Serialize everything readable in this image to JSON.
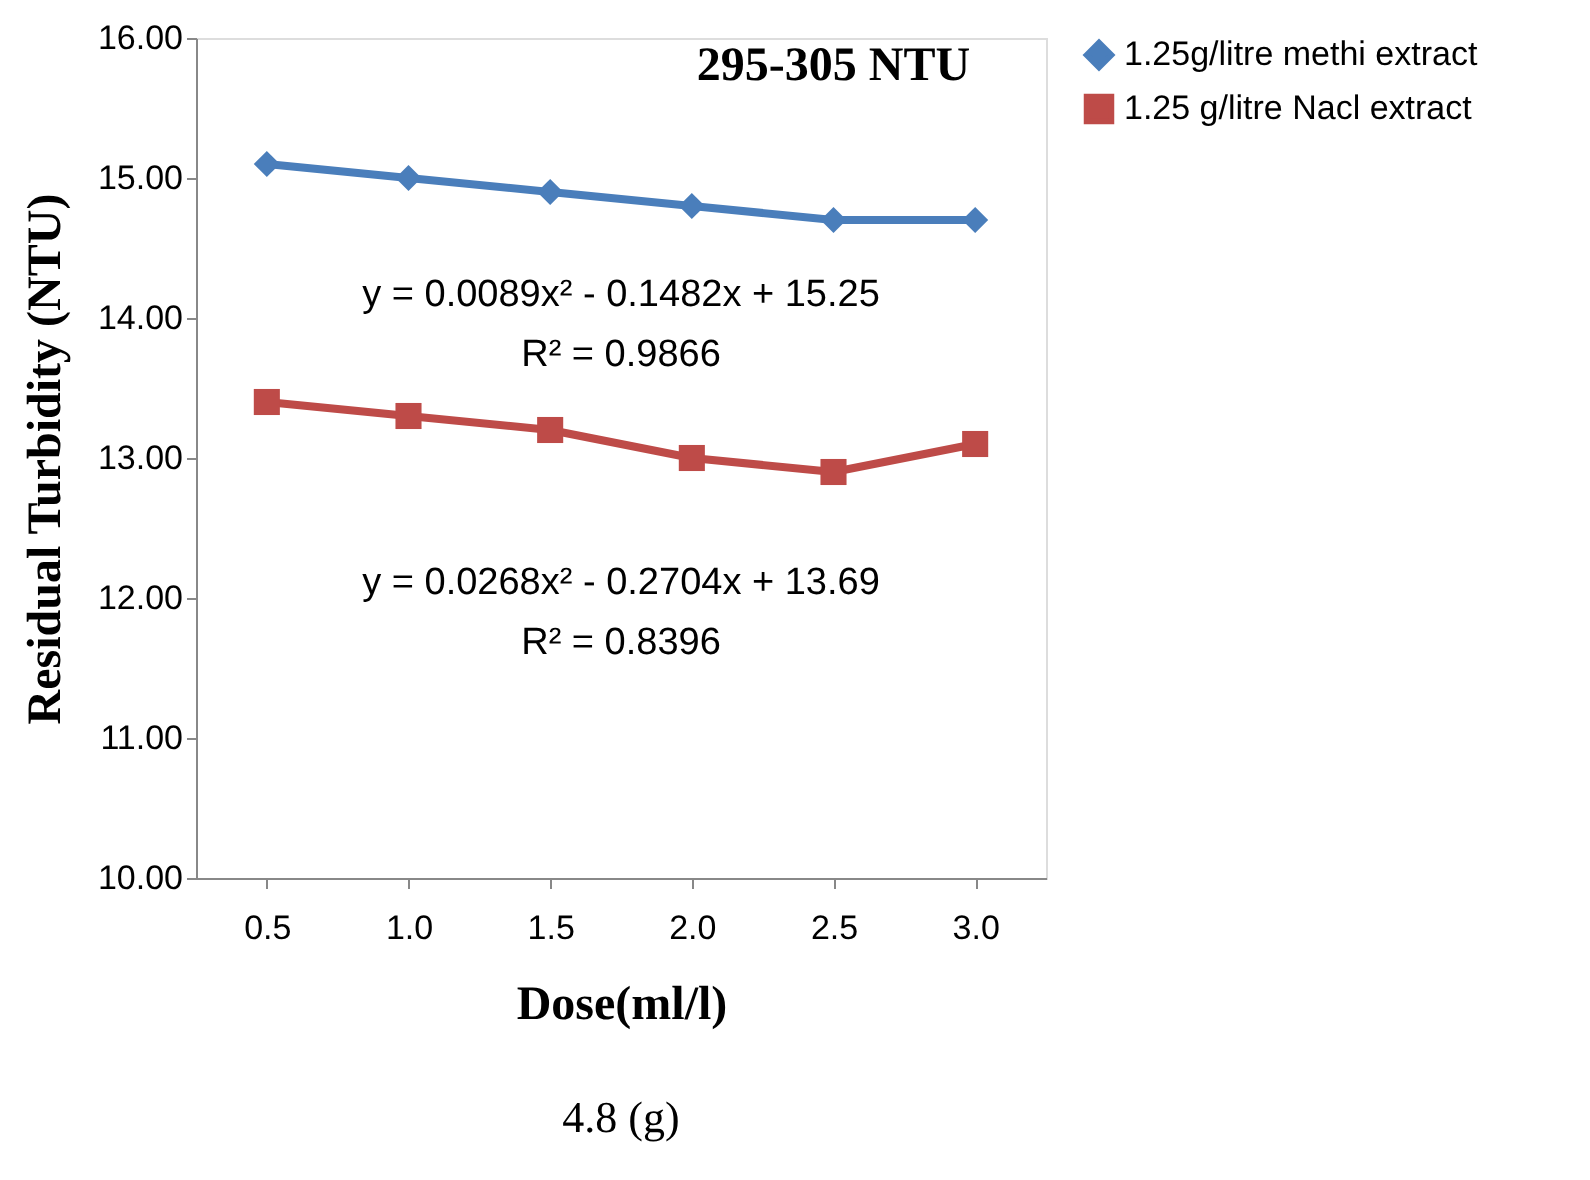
{
  "chart_data": {
    "type": "line",
    "title": "295-305 NTU",
    "xlabel": "Dose(ml/l)",
    "ylabel": "Residual Turbidity (NTU)",
    "categories": [
      "0.5",
      "1.0",
      "1.5",
      "2.0",
      "2.5",
      "3.0"
    ],
    "series": [
      {
        "name": "1.25g/litre methi extract",
        "color": "#4a7ebb",
        "marker": "diamond",
        "values": [
          15.1,
          15.0,
          14.9,
          14.8,
          14.7,
          14.7
        ]
      },
      {
        "name": "1.25 g/litre Nacl extract",
        "color": "#be4b48",
        "marker": "square",
        "values": [
          13.4,
          13.3,
          13.2,
          13.0,
          12.9,
          13.1
        ]
      }
    ],
    "ylim": [
      10,
      16
    ],
    "yticks": [
      {
        "value": 10,
        "label": "10.00"
      },
      {
        "value": 11,
        "label": "11.00"
      },
      {
        "value": 12,
        "label": "12.00"
      },
      {
        "value": 13,
        "label": "13.00"
      },
      {
        "value": 14,
        "label": "14.00"
      },
      {
        "value": 15,
        "label": "15.00"
      },
      {
        "value": 16,
        "label": "16.00"
      }
    ],
    "annotations": [
      "y = 0.0089x² - 0.1482x + 15.25",
      "R² = 0.9866",
      "y = 0.0268x² - 0.2704x + 13.69",
      "R² = 0.8396",
      "4.8 (g)"
    ],
    "grid": false,
    "legend": "right",
    "line_style": "solid"
  }
}
